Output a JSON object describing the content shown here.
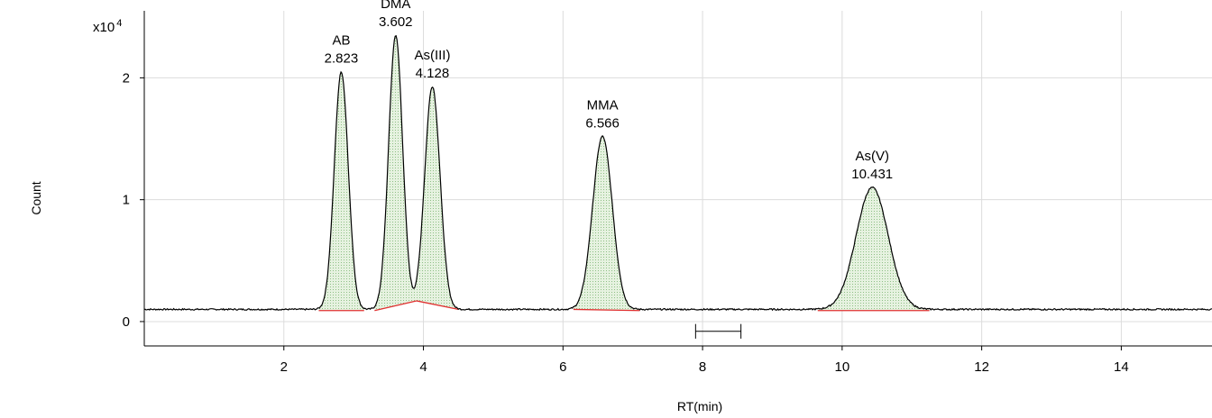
{
  "chart_data": {
    "type": "line",
    "xlabel": "RT(min)",
    "ylabel": "Count",
    "y_multiplier": "x10",
    "y_multiplier_exp": "4",
    "xlim": [
      0,
      15.3
    ],
    "ylim": [
      -0.2,
      2.55
    ],
    "x_ticks": [
      2,
      4,
      6,
      8,
      10,
      12,
      14
    ],
    "y_ticks": [
      0,
      1,
      2
    ],
    "grid": true,
    "baseline": 0.1,
    "bar": [
      7.9,
      8.55
    ],
    "peaks": [
      {
        "name": "AB",
        "rt": "2.823",
        "x": 2.823,
        "height": 2.05,
        "sigma": 0.1,
        "integ_start": 2.5,
        "integ_end": 3.15,
        "base_start": 0.09,
        "base_end": 0.09
      },
      {
        "name": "DMA",
        "rt": "3.602",
        "x": 3.602,
        "height": 2.35,
        "sigma": 0.1,
        "integ_start": 3.3,
        "integ_end": 3.9,
        "base_start": 0.09,
        "base_end": 0.17
      },
      {
        "name": "As(III)",
        "rt": "4.128",
        "x": 4.128,
        "height": 1.93,
        "sigma": 0.11,
        "integ_start": 3.9,
        "integ_end": 4.5,
        "base_start": 0.17,
        "base_end": 0.1
      },
      {
        "name": "MMA",
        "rt": "6.566",
        "x": 6.566,
        "height": 1.52,
        "sigma": 0.14,
        "integ_start": 6.15,
        "integ_end": 7.1,
        "base_start": 0.1,
        "base_end": 0.09
      },
      {
        "name": "As(V)",
        "rt": "10.431",
        "x": 10.431,
        "height": 1.1,
        "sigma": 0.23,
        "integ_start": 9.65,
        "integ_end": 11.25,
        "base_start": 0.09,
        "base_end": 0.09
      }
    ]
  },
  "colors": {
    "trace": "#000000",
    "fill": "#d9ecd3",
    "integration_baseline": "#e03030",
    "grid": "#dcdcdc"
  }
}
